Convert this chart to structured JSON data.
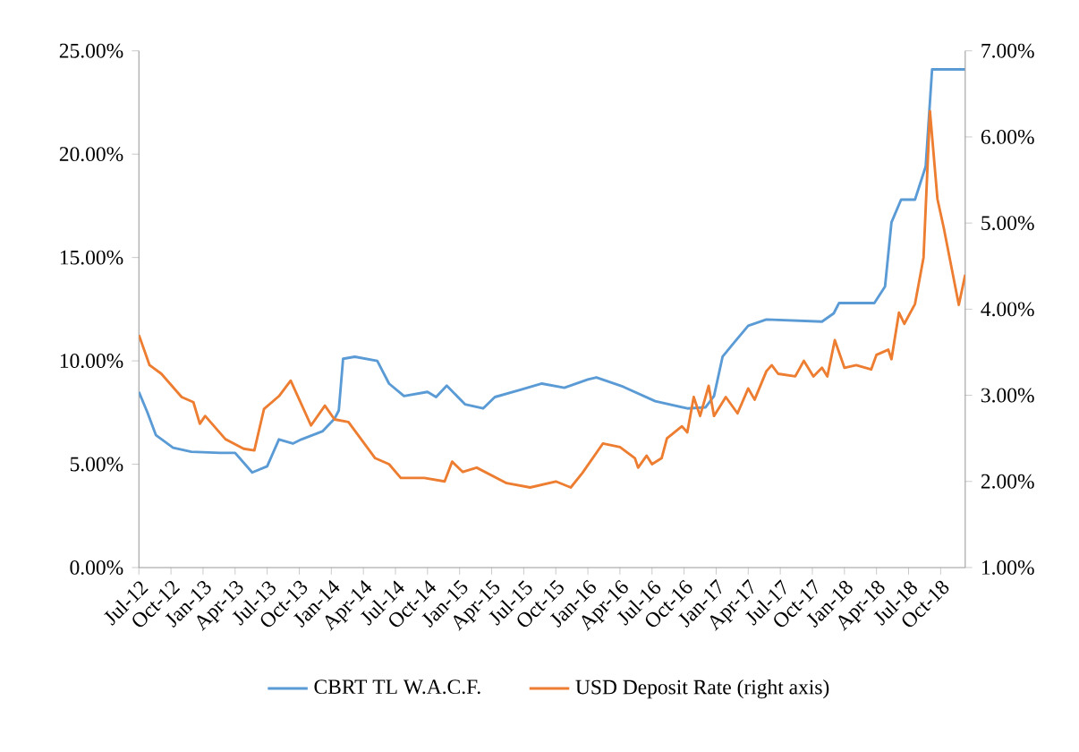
{
  "chart_data": {
    "type": "line",
    "xlim": [
      "2012-07-01",
      "2018-12-10"
    ],
    "xticks": [
      {
        "value": "2012-07",
        "label": "Jul-12"
      },
      {
        "value": "2012-10",
        "label": "Oct-12"
      },
      {
        "value": "2013-01",
        "label": "Jan-13"
      },
      {
        "value": "2013-04",
        "label": "Apr-13"
      },
      {
        "value": "2013-07",
        "label": "Jul-13"
      },
      {
        "value": "2013-10",
        "label": "Oct-13"
      },
      {
        "value": "2014-01",
        "label": "Jan-14"
      },
      {
        "value": "2014-04",
        "label": "Apr-14"
      },
      {
        "value": "2014-07",
        "label": "Jul-14"
      },
      {
        "value": "2014-10",
        "label": "Oct-14"
      },
      {
        "value": "2015-01",
        "label": "Jan-15"
      },
      {
        "value": "2015-04",
        "label": "Apr-15"
      },
      {
        "value": "2015-07",
        "label": "Jul-15"
      },
      {
        "value": "2015-10",
        "label": "Oct-15"
      },
      {
        "value": "2016-01",
        "label": "Jan-16"
      },
      {
        "value": "2016-04",
        "label": "Apr-16"
      },
      {
        "value": "2016-07",
        "label": "Jul-16"
      },
      {
        "value": "2016-10",
        "label": "Oct-16"
      },
      {
        "value": "2017-01",
        "label": "Jan-17"
      },
      {
        "value": "2017-04",
        "label": "Apr-17"
      },
      {
        "value": "2017-07",
        "label": "Jul-17"
      },
      {
        "value": "2017-10",
        "label": "Oct-17"
      },
      {
        "value": "2018-01",
        "label": "Jan-18"
      },
      {
        "value": "2018-04",
        "label": "Apr-18"
      },
      {
        "value": "2018-07",
        "label": "Jul-18"
      },
      {
        "value": "2018-10",
        "label": "Oct-18"
      }
    ],
    "ylim": [
      0,
      25
    ],
    "yticks": [
      {
        "value": 0,
        "label": "0.00%"
      },
      {
        "value": 5,
        "label": "5.00%"
      },
      {
        "value": 10,
        "label": "10.00%"
      },
      {
        "value": 15,
        "label": "15.00%"
      },
      {
        "value": 20,
        "label": "20.00%"
      },
      {
        "value": 25,
        "label": "25.00%"
      }
    ],
    "y2lim": [
      1,
      7
    ],
    "y2ticks": [
      {
        "value": 1,
        "label": "1.00%"
      },
      {
        "value": 2,
        "label": "2.00%"
      },
      {
        "value": 3,
        "label": "3.00%"
      },
      {
        "value": 4,
        "label": "4.00%"
      },
      {
        "value": 5,
        "label": "5.00%"
      },
      {
        "value": 6,
        "label": "6.00%"
      },
      {
        "value": 7,
        "label": "7.00%"
      }
    ],
    "legend": "bottom",
    "series": [
      {
        "name": "CBRT TL W.A.C.F.",
        "color": "#5b9bd5",
        "axis": "y",
        "x": [
          "2012-07-01",
          "2012-07-25",
          "2012-08-19",
          "2012-10-07",
          "2012-11-28",
          "2013-02-19",
          "2013-04-01",
          "2013-05-19",
          "2013-07-01",
          "2013-08-04",
          "2013-09-13",
          "2013-10-07",
          "2013-12-07",
          "2014-01-10",
          "2014-01-22",
          "2014-02-04",
          "2014-03-07",
          "2014-05-10",
          "2014-06-13",
          "2014-07-25",
          "2014-10-01",
          "2014-10-25",
          "2014-11-25",
          "2015-01-16",
          "2015-03-07",
          "2015-04-10",
          "2015-06-22",
          "2015-08-22",
          "2015-10-25",
          "2016-01-01",
          "2016-01-25",
          "2016-04-10",
          "2016-07-10",
          "2016-10-10",
          "2016-12-01",
          "2016-12-25",
          "2017-01-19",
          "2017-02-22",
          "2017-04-01",
          "2017-05-22",
          "2017-10-28",
          "2017-12-01",
          "2017-12-16",
          "2018-03-25",
          "2018-04-25",
          "2018-05-13",
          "2018-06-10",
          "2018-07-19",
          "2018-08-19",
          "2018-09-07",
          "2018-12-10"
        ],
        "values": [
          8.5,
          7.5,
          6.4,
          5.8,
          5.6,
          5.55,
          5.55,
          4.6,
          4.9,
          6.2,
          6.0,
          6.2,
          6.6,
          7.2,
          7.6,
          10.1,
          10.2,
          10.0,
          8.9,
          8.3,
          8.5,
          8.25,
          8.8,
          7.9,
          7.7,
          8.25,
          8.6,
          8.9,
          8.7,
          9.1,
          9.2,
          8.75,
          8.05,
          7.7,
          7.75,
          8.3,
          10.2,
          10.9,
          11.7,
          12.0,
          11.9,
          12.3,
          12.8,
          12.8,
          13.6,
          16.7,
          17.8,
          17.8,
          19.4,
          24.1,
          24.1
        ]
      },
      {
        "name": "USD Deposit Rate (right axis)",
        "color": "#ed7d31",
        "axis": "y2",
        "x": [
          "2012-07-01",
          "2012-08-01",
          "2012-09-04",
          "2012-11-01",
          "2012-12-04",
          "2012-12-22",
          "2013-01-07",
          "2013-03-04",
          "2013-04-25",
          "2013-05-25",
          "2013-06-22",
          "2013-08-04",
          "2013-09-07",
          "2013-11-04",
          "2013-12-13",
          "2014-01-10",
          "2014-02-19",
          "2014-05-04",
          "2014-06-13",
          "2014-07-16",
          "2014-09-22",
          "2014-11-19",
          "2014-12-10",
          "2015-01-10",
          "2015-02-19",
          "2015-05-13",
          "2015-07-19",
          "2015-10-01",
          "2015-11-13",
          "2015-12-16",
          "2016-02-13",
          "2016-04-01",
          "2016-05-13",
          "2016-05-22",
          "2016-06-16",
          "2016-07-01",
          "2016-07-28",
          "2016-08-13",
          "2016-09-25",
          "2016-10-10",
          "2016-10-28",
          "2016-11-16",
          "2016-12-10",
          "2016-12-25",
          "2017-01-28",
          "2017-03-01",
          "2017-04-01",
          "2017-04-19",
          "2017-05-22",
          "2017-06-07",
          "2017-06-25",
          "2017-08-13",
          "2017-09-07",
          "2017-10-04",
          "2017-10-28",
          "2017-11-13",
          "2017-12-04",
          "2018-01-01",
          "2018-02-04",
          "2018-03-16",
          "2018-04-01",
          "2018-05-04",
          "2018-05-13",
          "2018-06-04",
          "2018-06-19",
          "2018-07-19",
          "2018-08-13",
          "2018-09-01",
          "2018-09-22",
          "2018-10-10",
          "2018-11-22",
          "2018-12-10"
        ],
        "values": [
          3.7,
          3.35,
          3.25,
          2.98,
          2.92,
          2.67,
          2.76,
          2.49,
          2.38,
          2.36,
          2.84,
          2.99,
          3.17,
          2.65,
          2.88,
          2.72,
          2.69,
          2.27,
          2.2,
          2.04,
          2.04,
          2.0,
          2.23,
          2.11,
          2.16,
          1.98,
          1.93,
          2.0,
          1.93,
          2.1,
          2.44,
          2.4,
          2.27,
          2.16,
          2.3,
          2.2,
          2.27,
          2.5,
          2.64,
          2.57,
          2.98,
          2.76,
          3.11,
          2.76,
          2.98,
          2.79,
          3.08,
          2.95,
          3.28,
          3.35,
          3.25,
          3.22,
          3.4,
          3.22,
          3.32,
          3.22,
          3.64,
          3.32,
          3.35,
          3.3,
          3.47,
          3.53,
          3.42,
          3.96,
          3.83,
          4.06,
          4.6,
          6.3,
          5.28,
          4.94,
          4.05,
          4.4
        ]
      }
    ]
  }
}
